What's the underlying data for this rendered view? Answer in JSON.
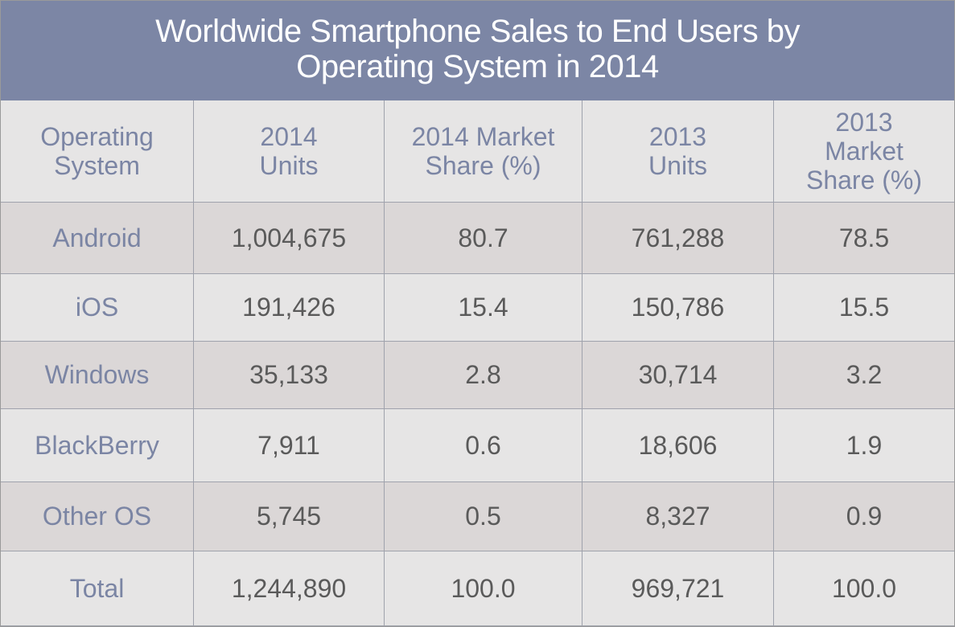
{
  "chart_data": {
    "type": "table",
    "title_lines": [
      "Worldwide Smartphone Sales to End Users by",
      "Operating System in 2014"
    ],
    "columns": [
      [
        "Operating",
        "System"
      ],
      [
        "2014",
        "Units"
      ],
      [
        "2014 Market",
        "Share (%)"
      ],
      [
        "2013",
        "Units"
      ],
      [
        "2013",
        "Market",
        "Share (%)"
      ]
    ],
    "rows": [
      [
        "Android",
        "1,004,675",
        "80.7",
        "761,288",
        "78.5"
      ],
      [
        "iOS",
        "191,426",
        "15.4",
        "150,786",
        "15.5"
      ],
      [
        "Windows",
        "35,133",
        "2.8",
        "30,714",
        "3.2"
      ],
      [
        "BlackBerry",
        "7,911",
        "0.6",
        "18,606",
        "1.9"
      ],
      [
        "Other OS",
        "5,745",
        "0.5",
        "8,327",
        "0.9"
      ],
      [
        "Total",
        "1,244,890",
        "100.0",
        "969,721",
        "100.0"
      ]
    ]
  },
  "colors": {
    "title_bg": "#7c86a5",
    "title_text": "#ffffff",
    "label_text": "#7b85a4",
    "value_text": "#5a5a5a",
    "row_light": "#e6e5e5",
    "row_dark": "#dbd7d7",
    "grid": "#9fa2ac"
  }
}
